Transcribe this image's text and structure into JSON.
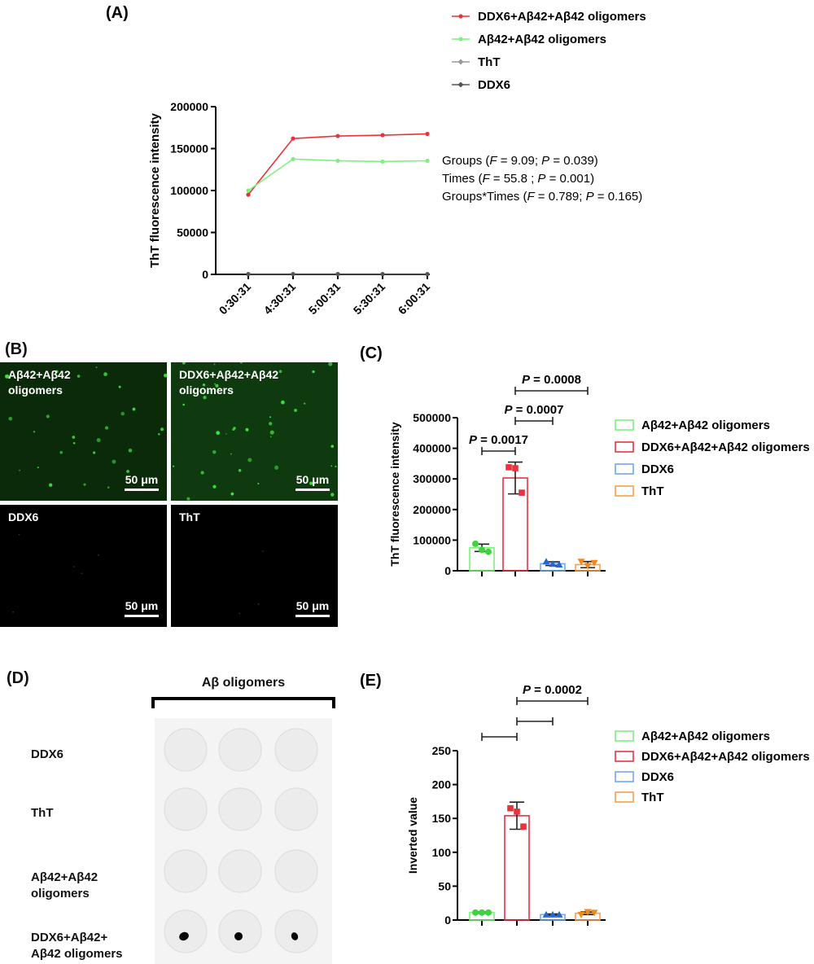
{
  "colors": {
    "red": "#e8333b",
    "green": "#3fd43f",
    "blue": "#2366d6",
    "orange": "#f08a1c",
    "gray_tht": "#9a9a9a",
    "gray_ddx6": "#555555",
    "bar_green": "#7cf27c",
    "bar_red": "#e8333b",
    "bar_blue": "#6fa8ef",
    "bar_orange": "#f5a050"
  },
  "panel_a": {
    "label": "(A)",
    "stats": [
      [
        "Groups (",
        "F",
        " = 9.09; ",
        "P",
        " = 0.039)"
      ],
      [
        "Times (",
        "F",
        " = 55.8 ; ",
        "P",
        " = 0.001)"
      ],
      [
        "Groups*Times (",
        "F",
        " = 0.789; ",
        "P",
        " = 0.165)"
      ]
    ]
  },
  "panel_b": {
    "label": "(B)",
    "images": [
      {
        "label": "Aβ42+Aβ42\noligomers",
        "scale": "50 μm"
      },
      {
        "label": "DDX6+Aβ42+Aβ42\noligomers",
        "scale": "50 μm"
      },
      {
        "label": "DDX6",
        "scale": "50 μm"
      },
      {
        "label": "ThT",
        "scale": "50 μm"
      }
    ]
  },
  "panel_c": {
    "label": "(C)"
  },
  "panel_d": {
    "label": "(D)",
    "header": "Aβ oligomers",
    "rows": [
      "DDX6",
      "ThT",
      "Aβ42+Aβ42\noligomers",
      "DDX6+Aβ42+\nAβ42 oligomers"
    ]
  },
  "panel_e": {
    "label": "(E)"
  },
  "chart_data": [
    {
      "type": "line",
      "panel": "A",
      "categories": [
        "0:30:31",
        "4:30:31",
        "5:00:31",
        "5:30:31",
        "6:00:31"
      ],
      "series": [
        {
          "name": "DDX6+Aβ42+Aβ42 oligomers",
          "color": "#e8333b",
          "values": [
            95000,
            162000,
            165000,
            166000,
            167500
          ]
        },
        {
          "name": "Aβ42+Aβ42 oligomers",
          "color": "#7cf27c",
          "values": [
            100000,
            137500,
            135500,
            134500,
            135500
          ]
        },
        {
          "name": "ThT",
          "color": "#9a9a9a",
          "values": [
            500,
            500,
            500,
            500,
            500
          ]
        },
        {
          "name": "DDX6",
          "color": "#555555",
          "values": [
            300,
            300,
            300,
            300,
            300
          ]
        }
      ],
      "ylabel": "ThT fluorescence intensity",
      "ylim": [
        0,
        200000
      ],
      "yticks": [
        0,
        50000,
        100000,
        150000,
        200000
      ],
      "legend": "top-right"
    },
    {
      "type": "bar",
      "panel": "C",
      "categories": [
        "Aβ42+Aβ42 oligomers",
        "DDX6+Aβ42+Aβ42 oligomers",
        "DDX6",
        "ThT"
      ],
      "series": [
        {
          "name": "Aβ42+Aβ42 oligomers",
          "color": "#3fd43f",
          "value": 75000,
          "sd": 12000,
          "points": [
            88000,
            68000,
            62000
          ]
        },
        {
          "name": "DDX6+Aβ42+Aβ42 oligomers",
          "color": "#e8333b",
          "value": 303000,
          "sd": 52000,
          "points": [
            338000,
            335000,
            255000
          ]
        },
        {
          "name": "DDX6",
          "color": "#2366d6",
          "value": 23000,
          "sd": 6000,
          "points": [
            30000,
            22000,
            20000
          ]
        },
        {
          "name": "ThT",
          "color": "#f08a1c",
          "value": 20000,
          "sd": 10000,
          "points": [
            30000,
            16000,
            26000
          ]
        }
      ],
      "ylabel": "ThT fluorescence intensity",
      "ylim": [
        0,
        500000
      ],
      "yticks": [
        0,
        100000,
        200000,
        300000,
        400000,
        500000
      ],
      "annotations": [
        {
          "text": "P = 0.0017",
          "from": 0,
          "to": 1
        },
        {
          "text": "P = 0.0007",
          "from": 1,
          "to": 2
        },
        {
          "text": "P = 0.0008",
          "from": 1,
          "to": 3
        }
      ],
      "legend": "right"
    },
    {
      "type": "bar",
      "panel": "E",
      "categories": [
        "Aβ42+Aβ42 oligomers",
        "DDX6+Aβ42+Aβ42 oligomers",
        "DDX6",
        "ThT"
      ],
      "series": [
        {
          "name": "Aβ42+Aβ42 oligomers",
          "color": "#3fd43f",
          "value": 11,
          "sd": 1,
          "points": [
            11,
            11,
            11
          ]
        },
        {
          "name": "DDX6+Aβ42+Aβ42 oligomers",
          "color": "#e8333b",
          "value": 154,
          "sd": 20,
          "points": [
            165,
            160,
            138
          ]
        },
        {
          "name": "DDX6",
          "color": "#2366d6",
          "value": 8,
          "sd": 1,
          "points": [
            8,
            8,
            8
          ]
        },
        {
          "name": "ThT",
          "color": "#f08a1c",
          "value": 10,
          "sd": 2,
          "points": [
            8,
            12,
            11
          ]
        }
      ],
      "ylabel": "Inverted value",
      "ylim": [
        0,
        250
      ],
      "yticks": [
        0,
        50,
        100,
        150,
        200,
        250
      ],
      "annotations": [
        {
          "text": "",
          "from": 0,
          "to": 1
        },
        {
          "text": "",
          "from": 1,
          "to": 2
        },
        {
          "text": "P = 0.0002",
          "from": 1,
          "to": 3
        }
      ],
      "legend": "right"
    }
  ]
}
